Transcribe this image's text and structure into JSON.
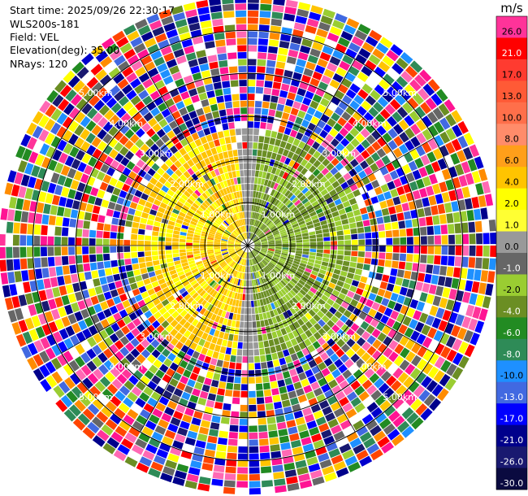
{
  "header": {
    "start_time": "Start time: 2025/09/26 22:30:17",
    "instrument": "WLS200s-181",
    "field": "Field: VEL",
    "elevation": "Elevation(deg): 35.00",
    "nrays": "NRays: 120"
  },
  "chart_data": {
    "type": "ppi",
    "field": "VEL",
    "units": "m/s",
    "elevation_deg": 35.0,
    "n_rays": 120,
    "range_rings_km": [
      1.0,
      2.0,
      3.0,
      4.0,
      5.0
    ],
    "range_ring_labels": [
      "1.00km",
      "2.00km",
      "3.00km",
      "4.00km",
      "5.00km"
    ],
    "max_range_km": 5.8,
    "colorbar": {
      "unit_label": "m/s",
      "levels": [
        {
          "label": "26.0",
          "color": "#ff3399"
        },
        {
          "label": "21.0",
          "color": "#ff0000"
        },
        {
          "label": "17.0",
          "color": "#ff3b30"
        },
        {
          "label": "13.0",
          "color": "#ff5a36"
        },
        {
          "label": "10.0",
          "color": "#ff6f4a"
        },
        {
          "label": "8.0",
          "color": "#ff8c6a"
        },
        {
          "label": "6.0",
          "color": "#ff9f1a"
        },
        {
          "label": "4.0",
          "color": "#ffc400"
        },
        {
          "label": "2.0",
          "color": "#ffff00"
        },
        {
          "label": "1.0",
          "color": "#ffff33"
        },
        {
          "label": "0.0",
          "color": "#999999"
        },
        {
          "label": "-1.0",
          "color": "#666666"
        },
        {
          "label": "-2.0",
          "color": "#9acd32"
        },
        {
          "label": "-4.0",
          "color": "#6b8e23"
        },
        {
          "label": "-6.0",
          "color": "#228b22"
        },
        {
          "label": "-8.0",
          "color": "#2e8b57"
        },
        {
          "label": "-10.0",
          "color": "#1e90ff"
        },
        {
          "label": "-13.0",
          "color": "#4169e1"
        },
        {
          "label": "-17.0",
          "color": "#0000ff"
        },
        {
          "label": "-21.0",
          "color": "#00008b"
        },
        {
          "label": "-26.0",
          "color": "#191970"
        },
        {
          "label": "-30.0",
          "color": "#0a0a40"
        }
      ]
    },
    "noise_palette": [
      "#ff3399",
      "#ff1493",
      "#ff0000",
      "#ff4500",
      "#0000cd",
      "#0000ff",
      "#00008b",
      "#191970",
      "#4169e1",
      "#1e90ff",
      "#228b22",
      "#2e8b57",
      "#6b8e23",
      "#9acd32",
      "#ffff00",
      "#ffc400",
      "#ff8c00",
      "#ff69b4",
      "#ffffff",
      "#666666"
    ],
    "near_field": {
      "west_color": "#ffc400",
      "west_alt": "#ffff00",
      "east_color": "#6b8e23",
      "east_alt": "#9acd32",
      "center_color": "#999999",
      "near_range_km": 2.0
    }
  }
}
